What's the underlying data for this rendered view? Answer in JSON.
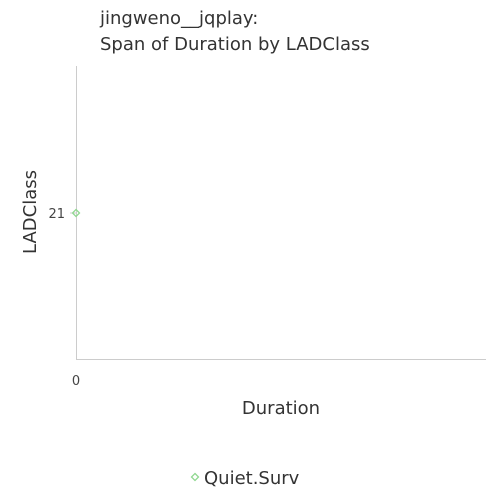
{
  "chart_data": {
    "type": "scatter",
    "title_lines": [
      "jingweno__jqplay:",
      "Span of Duration by LADClass"
    ],
    "xlabel": "Duration",
    "ylabel": "LADClass",
    "xlim": [
      0,
      1
    ],
    "ylim": [
      19,
      23
    ],
    "x_ticks": [
      "0"
    ],
    "y_ticks": [
      "21"
    ],
    "grid": false,
    "legend_position": "bottom-center",
    "series": [
      {
        "name": "Quiet.Surv",
        "color": "#90d890",
        "marker": "diamond",
        "points": [
          {
            "x": 0,
            "y": 21
          }
        ]
      }
    ]
  }
}
